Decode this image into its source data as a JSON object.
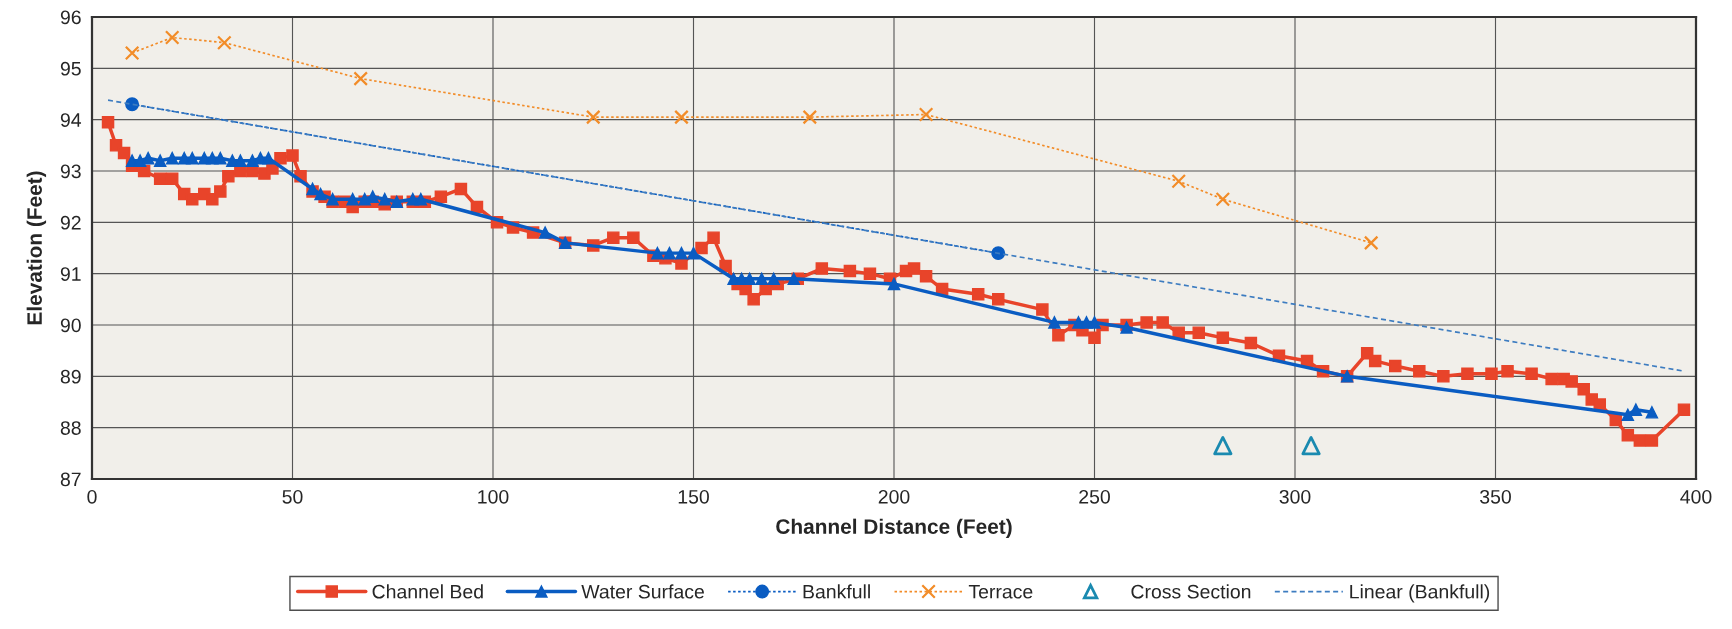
{
  "chart_data": {
    "type": "line",
    "xlabel": "Channel Distance (Feet)",
    "ylabel": "Elevation (Feet)",
    "xlim": [
      0,
      400
    ],
    "xticks": [
      0,
      50,
      100,
      150,
      200,
      250,
      300,
      350,
      400
    ],
    "ylim": [
      87,
      96
    ],
    "yticks": [
      87,
      88,
      89,
      90,
      91,
      92,
      93,
      94,
      95,
      96
    ],
    "grid": true,
    "legend": "bottom",
    "series": [
      {
        "name": "Channel Bed",
        "type": "line",
        "color": "#e8442a",
        "marker": "square",
        "line_style": "solid",
        "x": [
          4,
          6,
          8,
          10,
          13,
          17,
          20,
          23,
          25,
          28,
          30,
          32,
          34,
          37,
          40,
          43,
          45,
          47,
          50,
          52,
          55,
          58,
          60,
          63,
          65,
          68,
          70,
          73,
          76,
          80,
          83,
          87,
          92,
          96,
          101,
          105,
          110,
          118,
          125,
          130,
          135,
          140,
          143,
          147,
          152,
          155,
          158,
          161,
          163,
          165,
          168,
          171,
          176,
          182,
          189,
          194,
          199,
          203,
          205,
          208,
          212,
          221,
          226,
          237,
          241,
          245,
          247,
          250,
          252,
          258,
          263,
          267,
          271,
          276,
          282,
          289,
          296,
          303,
          307,
          313,
          318,
          320,
          325,
          331,
          337,
          343,
          349,
          353,
          359,
          364,
          367,
          369,
          372,
          374,
          376,
          380,
          383,
          386,
          389,
          397
        ],
        "values": [
          93.95,
          93.5,
          93.35,
          93.1,
          93.0,
          92.85,
          92.85,
          92.55,
          92.45,
          92.55,
          92.45,
          92.6,
          92.9,
          93.0,
          93.0,
          92.95,
          93.05,
          93.25,
          93.3,
          92.9,
          92.6,
          92.5,
          92.4,
          92.4,
          92.3,
          92.4,
          92.4,
          92.35,
          92.4,
          92.4,
          92.4,
          92.5,
          92.65,
          92.3,
          92.0,
          91.9,
          91.8,
          91.6,
          91.55,
          91.7,
          91.7,
          91.35,
          91.3,
          91.2,
          91.5,
          91.7,
          91.15,
          90.8,
          90.7,
          90.5,
          90.7,
          90.8,
          90.9,
          91.1,
          91.05,
          91.0,
          90.9,
          91.05,
          91.1,
          90.95,
          90.7,
          90.6,
          90.5,
          90.3,
          89.8,
          90.0,
          89.9,
          89.75,
          90.0,
          90.0,
          90.05,
          90.05,
          89.85,
          89.85,
          89.75,
          89.65,
          89.4,
          89.3,
          89.1,
          89.0,
          89.45,
          89.3,
          89.2,
          89.1,
          89.0,
          89.05,
          89.05,
          89.1,
          89.05,
          88.95,
          88.95,
          88.9,
          88.75,
          88.55,
          88.45,
          88.15,
          87.85,
          87.75,
          87.75,
          88.35
        ]
      },
      {
        "name": "Water Surface",
        "type": "line",
        "color": "#0a5cc2",
        "marker": "triangle",
        "line_style": "solid",
        "x": [
          10,
          12,
          14,
          17,
          20,
          23,
          25,
          28,
          30,
          32,
          35,
          37,
          40,
          42,
          44,
          55,
          57,
          60,
          65,
          68,
          70,
          73,
          76,
          80,
          82,
          113,
          118,
          141,
          144,
          147,
          150,
          160,
          162,
          164,
          167,
          170,
          175,
          200,
          240,
          246,
          248,
          250,
          258,
          313,
          383,
          385,
          389
        ],
        "values": [
          93.2,
          93.2,
          93.25,
          93.2,
          93.25,
          93.25,
          93.25,
          93.25,
          93.25,
          93.25,
          93.2,
          93.2,
          93.2,
          93.25,
          93.25,
          92.65,
          92.55,
          92.45,
          92.45,
          92.45,
          92.5,
          92.45,
          92.4,
          92.45,
          92.45,
          91.8,
          91.6,
          91.4,
          91.4,
          91.4,
          91.4,
          90.9,
          90.9,
          90.9,
          90.9,
          90.9,
          90.9,
          90.8,
          90.05,
          90.05,
          90.05,
          90.05,
          89.95,
          89.0,
          88.25,
          88.35,
          88.3
        ]
      },
      {
        "name": "Bankfull",
        "type": "line",
        "color": "#0a5cc2",
        "marker": "circle",
        "line_style": "dotted",
        "x": [
          10,
          226
        ],
        "values": [
          94.3,
          91.4
        ]
      },
      {
        "name": "Terrace",
        "type": "line",
        "color": "#f28c28",
        "marker": "cross",
        "line_style": "dotted",
        "x": [
          10,
          20,
          33,
          67,
          125,
          147,
          179,
          208,
          271,
          282,
          319
        ],
        "values": [
          95.3,
          95.6,
          95.5,
          94.8,
          94.05,
          94.05,
          94.05,
          94.1,
          92.8,
          92.45,
          91.6
        ]
      },
      {
        "name": "Cross Section",
        "type": "scatter",
        "color": "#1a8ab0",
        "marker": "triangle",
        "x": [
          282,
          304
        ],
        "values": [
          87.65,
          87.65
        ]
      },
      {
        "name": "Linear (Bankfull)",
        "type": "line",
        "color": "#3d7cc0",
        "marker": "none",
        "line_style": "dashed",
        "x": [
          4,
          397
        ],
        "values": [
          94.38,
          89.1
        ]
      }
    ]
  }
}
